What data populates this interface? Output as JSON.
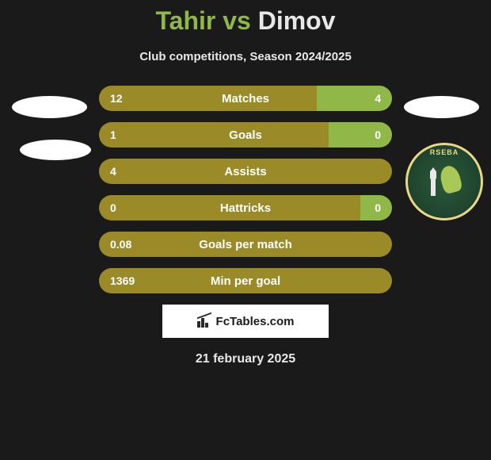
{
  "title": {
    "left_player": "Tahir",
    "vs": "vs",
    "right_player": "Dimov"
  },
  "subtitle": "Club competitions, Season 2024/2025",
  "colors": {
    "left_player_color": "#8fb848",
    "right_player_color": "#e8e8e8",
    "bar_left_color": "#9a8a28",
    "bar_right_color": "#8fb848",
    "background": "#1a1a1a",
    "text_white": "#ffffff"
  },
  "stats": [
    {
      "label": "Matches",
      "left_value": "12",
      "right_value": "4",
      "left_width": 275,
      "right_width": 95
    },
    {
      "label": "Goals",
      "left_value": "1",
      "right_value": "0",
      "left_width": 290,
      "right_width": 80
    },
    {
      "label": "Assists",
      "left_value": "4",
      "right_value": "",
      "left_width": 370,
      "right_width": 0
    },
    {
      "label": "Hattricks",
      "left_value": "0",
      "right_value": "0",
      "left_width": 330,
      "right_width": 40
    },
    {
      "label": "Goals per match",
      "left_value": "0.08",
      "right_value": "",
      "left_width": 370,
      "right_width": 0
    },
    {
      "label": "Min per goal",
      "left_value": "1369",
      "right_value": "",
      "left_width": 370,
      "right_width": 0
    }
  ],
  "club_badge": {
    "text": "RSEBA",
    "border_color": "#e8d888",
    "bg_color_center": "#2a5a3a",
    "bg_color_edge": "#1a3a28"
  },
  "footer": {
    "site_name": "FcTables.com"
  },
  "date": "21 february 2025"
}
